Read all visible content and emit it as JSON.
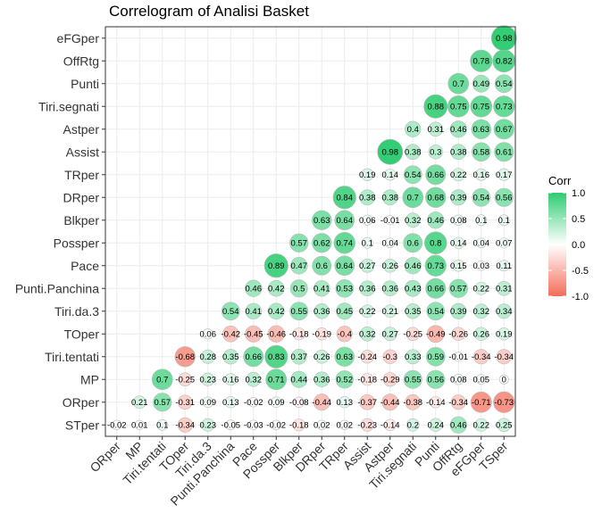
{
  "chart_data": {
    "type": "correlogram",
    "title": "Correlogram of Analisi Basket",
    "variables": [
      "STper",
      "ORper",
      "MP",
      "Tiri.tentati",
      "TOper",
      "Tiri.da.3",
      "Punti.Panchina",
      "Pace",
      "Possper",
      "Blkper",
      "DRper",
      "TRper",
      "Assist",
      "Astper",
      "Tiri.segnati",
      "Punti",
      "OffRtg",
      "eFGper",
      "TSper"
    ],
    "rows": [
      "STper",
      "ORper",
      "MP",
      "Tiri.tentati",
      "TOper",
      "Tiri.da.3",
      "Punti.Panchina",
      "Pace",
      "Possper",
      "Blkper",
      "DRper",
      "TRper",
      "Assist",
      "Astper",
      "Tiri.segnati",
      "Punti",
      "OffRtg",
      "eFGper"
    ],
    "columns": [
      "ORper",
      "MP",
      "Tiri.tentati",
      "TOper",
      "Tiri.da.3",
      "Punti.Panchina",
      "Pace",
      "Possper",
      "Blkper",
      "DRper",
      "TRper",
      "Assist",
      "Astper",
      "Tiri.segnati",
      "Punti",
      "OffRtg",
      "eFGper",
      "TSper"
    ],
    "values": [
      [
        -0.02,
        0.01,
        0.1,
        -0.34,
        0.23,
        -0.05,
        -0.03,
        -0.02,
        -0.18,
        0.02,
        0.02,
        -0.23,
        -0.14,
        0.2,
        0.24,
        0.46,
        0.22,
        0.25
      ],
      [
        0.21,
        0.57,
        -0.31,
        0.09,
        0.13,
        -0.02,
        0.09,
        -0.08,
        -0.44,
        0.13,
        -0.37,
        -0.44,
        -0.38,
        -0.14,
        -0.34,
        -0.71,
        -0.73
      ],
      [
        0.7,
        -0.25,
        0.23,
        0.16,
        0.32,
        0.71,
        0.44,
        0.36,
        0.52,
        -0.18,
        -0.29,
        0.55,
        0.56,
        0.08,
        0.05,
        0
      ],
      [
        -0.68,
        0.28,
        0.35,
        0.66,
        0.83,
        0.37,
        0.26,
        0.63,
        -0.24,
        -0.3,
        0.33,
        0.59,
        -0.01,
        -0.34,
        -0.34
      ],
      [
        0.06,
        -0.42,
        -0.45,
        -0.46,
        -0.18,
        -0.19,
        -0.4,
        0.32,
        0.27,
        -0.25,
        -0.49,
        -0.26,
        0.26,
        0.19
      ],
      [
        0.54,
        0.41,
        0.42,
        0.55,
        0.36,
        0.45,
        0.22,
        0.21,
        0.35,
        0.54,
        0.39,
        0.32,
        0.34
      ],
      [
        0.46,
        0.42,
        0.5,
        0.41,
        0.53,
        0.36,
        0.36,
        0.43,
        0.66,
        0.57,
        0.22,
        0.31
      ],
      [
        0.89,
        0.47,
        0.6,
        0.64,
        0.27,
        0.26,
        0.46,
        0.73,
        0.15,
        0.03,
        0.11
      ],
      [
        0.57,
        0.62,
        0.74,
        0.1,
        0.04,
        0.6,
        0.8,
        0.14,
        0.04,
        0.07
      ],
      [
        0.63,
        0.64,
        0.06,
        -0.01,
        0.32,
        0.46,
        0.08,
        0.1,
        0.1
      ],
      [
        0.84,
        0.38,
        0.38,
        0.7,
        0.68,
        0.39,
        0.54,
        0.56
      ],
      [
        0.19,
        0.14,
        0.54,
        0.66,
        0.22,
        0.16,
        0.17
      ],
      [
        0.98,
        0.38,
        0.3,
        0.38,
        0.58,
        0.61
      ],
      [
        0.4,
        0.31,
        0.46,
        0.63,
        0.67
      ],
      [
        0.88,
        0.75,
        0.75,
        0.73
      ],
      [
        0.7,
        0.49,
        0.54
      ],
      [
        0.78,
        0.82
      ],
      [
        0.98
      ]
    ],
    "legend": {
      "title": "Corr",
      "ticks": [
        "1.0",
        "0.5",
        "0.0",
        "-0.5",
        "-1.0"
      ],
      "placement": "right"
    },
    "colors": {
      "positive": "#2ECC71",
      "neutral": "#FFFFFF",
      "negative": "#F46D5A",
      "grid": "#EBEBEB",
      "border": "#333333"
    },
    "xlim": [
      -1.0,
      1.0
    ]
  }
}
